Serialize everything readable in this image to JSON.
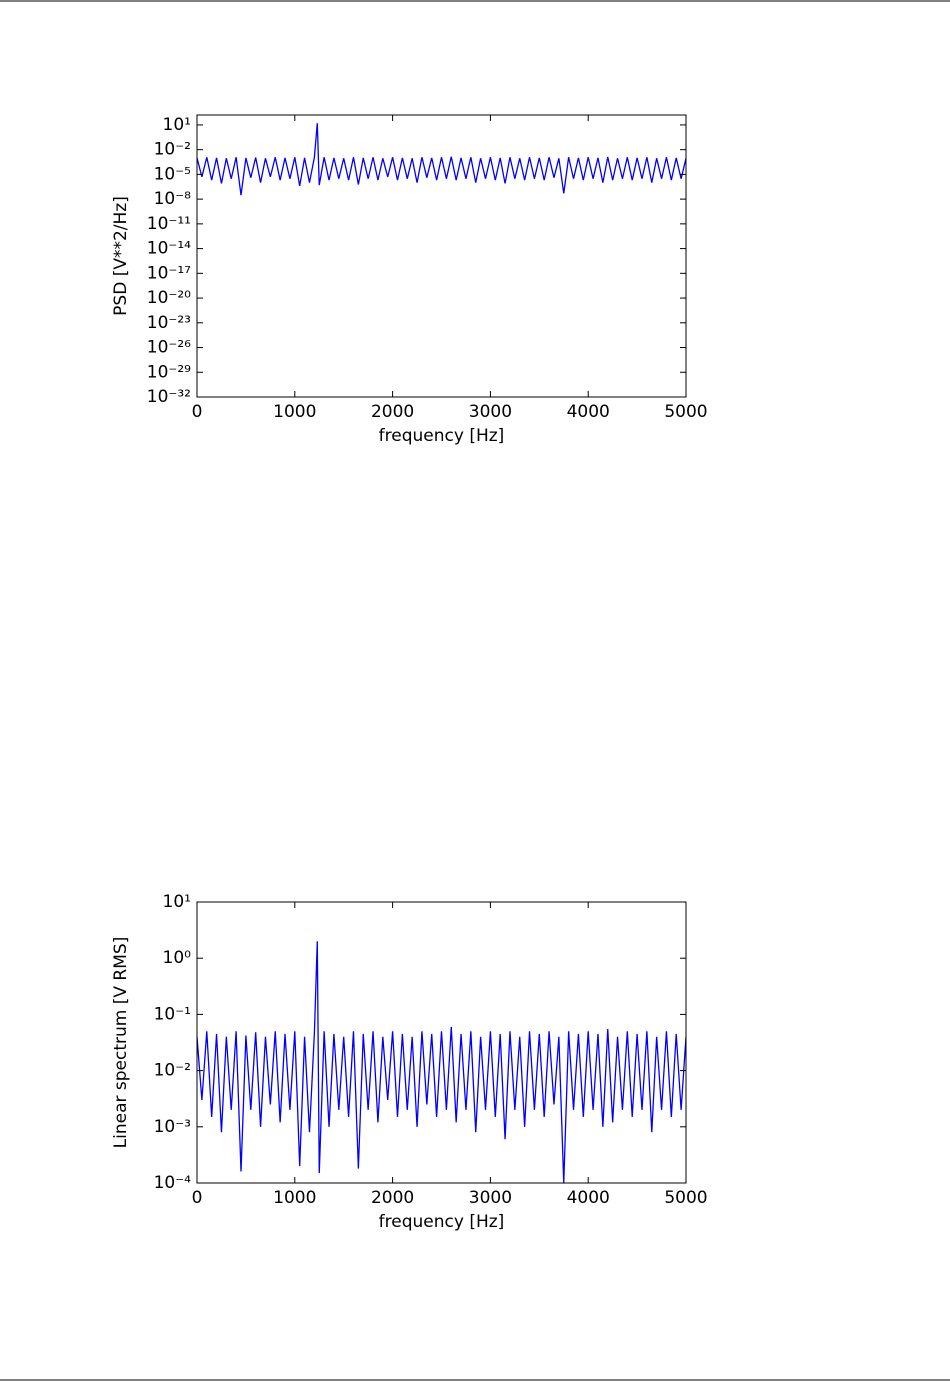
{
  "chart_data": [
    {
      "type": "line",
      "xlabel": "frequency [Hz]",
      "ylabel": "PSD [V**2/Hz]",
      "yscale": "log",
      "xlim": [
        0,
        5000
      ],
      "xticks": [
        0,
        1000,
        2000,
        3000,
        4000,
        5000
      ],
      "ylim": [
        1e-32,
        160
      ],
      "yticks": [
        {
          "value": 10,
          "label": "10¹"
        },
        {
          "value": 0.01,
          "label": "10⁻²"
        },
        {
          "value": 1e-05,
          "label": "10⁻⁵"
        },
        {
          "value": 1e-08,
          "label": "10⁻⁸"
        },
        {
          "value": 1e-11,
          "label": "10⁻¹¹"
        },
        {
          "value": 1e-14,
          "label": "10⁻¹⁴"
        },
        {
          "value": 1e-17,
          "label": "10⁻¹⁷"
        },
        {
          "value": 1e-20,
          "label": "10⁻²⁰"
        },
        {
          "value": 1e-23,
          "label": "10⁻²³"
        },
        {
          "value": 1e-26,
          "label": "10⁻²⁶"
        },
        {
          "value": 1e-29,
          "label": "10⁻²⁹"
        },
        {
          "value": 1e-32,
          "label": "10⁻³²"
        }
      ],
      "color": "#0000ff",
      "x": [
        0,
        50,
        100,
        150,
        200,
        250,
        300,
        350,
        400,
        450,
        500,
        550,
        600,
        650,
        700,
        750,
        800,
        850,
        900,
        950,
        1000,
        1050,
        1100,
        1150,
        1200,
        1230,
        1250,
        1300,
        1350,
        1400,
        1450,
        1500,
        1550,
        1600,
        1650,
        1700,
        1750,
        1800,
        1850,
        1900,
        1950,
        2000,
        2050,
        2100,
        2150,
        2200,
        2250,
        2300,
        2350,
        2400,
        2450,
        2500,
        2550,
        2600,
        2650,
        2700,
        2750,
        2800,
        2850,
        2900,
        2950,
        3000,
        3050,
        3100,
        3150,
        3200,
        3250,
        3300,
        3350,
        3400,
        3450,
        3500,
        3550,
        3600,
        3650,
        3700,
        3750,
        3800,
        3850,
        3900,
        3950,
        4000,
        4050,
        4100,
        4150,
        4200,
        4250,
        4300,
        4350,
        4400,
        4450,
        4500,
        4550,
        4600,
        4650,
        4700,
        4750,
        4800,
        4850,
        4900,
        4950,
        5000
      ],
      "values": [
        0.001,
        5e-06,
        0.0012,
        2e-06,
        0.001,
        8e-07,
        0.0009,
        3e-06,
        0.0012,
        3e-08,
        0.001,
        4e-06,
        0.0011,
        1e-06,
        0.0009,
        5e-06,
        0.0012,
        2e-06,
        0.001,
        3e-06,
        0.0012,
        4e-07,
        0.001,
        1e-06,
        0.0011,
        16,
        5e-07,
        0.0012,
        2e-06,
        0.001,
        3e-06,
        0.0009,
        2e-06,
        0.0012,
        6e-07,
        0.001,
        3e-06,
        0.0012,
        2e-06,
        0.0009,
        5e-06,
        0.0012,
        2e-06,
        0.001,
        3e-06,
        0.0009,
        1e-06,
        0.0012,
        4e-06,
        0.001,
        2e-06,
        0.0012,
        3e-06,
        0.0014,
        2e-06,
        0.001,
        3e-06,
        0.0012,
        1e-06,
        0.0009,
        3e-06,
        0.0012,
        2e-06,
        0.001,
        8e-07,
        0.0012,
        3e-06,
        0.0009,
        2e-06,
        0.0012,
        3e-06,
        0.001,
        2e-06,
        0.0012,
        4e-06,
        0.0009,
        5e-08,
        0.0012,
        3e-06,
        0.001,
        2e-06,
        0.0012,
        3e-06,
        0.001,
        1e-06,
        0.0013,
        2e-06,
        0.0009,
        3e-06,
        0.0012,
        2e-06,
        0.001,
        3e-06,
        0.0012,
        1e-06,
        0.0009,
        3e-06,
        0.0012,
        2e-06,
        0.001,
        3e-06,
        0.0009
      ]
    },
    {
      "type": "line",
      "xlabel": "frequency [Hz]",
      "ylabel": "Linear spectrum [V RMS]",
      "yscale": "log",
      "xlim": [
        0,
        5000
      ],
      "xticks": [
        0,
        1000,
        2000,
        3000,
        4000,
        5000
      ],
      "ylim": [
        0.0001,
        10
      ],
      "yticks": [
        {
          "value": 10,
          "label": "10¹"
        },
        {
          "value": 1,
          "label": "10⁰"
        },
        {
          "value": 0.1,
          "label": "10⁻¹"
        },
        {
          "value": 0.01,
          "label": "10⁻²"
        },
        {
          "value": 0.001,
          "label": "10⁻³"
        },
        {
          "value": 0.0001,
          "label": "10⁻⁴"
        }
      ],
      "color": "#0000ff",
      "x": [
        0,
        50,
        100,
        150,
        200,
        250,
        300,
        350,
        400,
        450,
        500,
        550,
        600,
        650,
        700,
        750,
        800,
        850,
        900,
        950,
        1000,
        1050,
        1100,
        1150,
        1200,
        1230,
        1250,
        1300,
        1350,
        1400,
        1450,
        1500,
        1550,
        1600,
        1650,
        1700,
        1750,
        1800,
        1850,
        1900,
        1950,
        2000,
        2050,
        2100,
        2150,
        2200,
        2250,
        2300,
        2350,
        2400,
        2450,
        2500,
        2550,
        2600,
        2650,
        2700,
        2750,
        2800,
        2850,
        2900,
        2950,
        3000,
        3050,
        3100,
        3150,
        3200,
        3250,
        3300,
        3350,
        3400,
        3450,
        3500,
        3550,
        3600,
        3650,
        3700,
        3750,
        3800,
        3850,
        3900,
        3950,
        4000,
        4050,
        4100,
        4150,
        4200,
        4250,
        4300,
        4350,
        4400,
        4450,
        4500,
        4550,
        4600,
        4650,
        4700,
        4750,
        4800,
        4850,
        4900,
        4950,
        5000
      ],
      "values": [
        0.04,
        0.003,
        0.05,
        0.0015,
        0.045,
        0.0008,
        0.04,
        0.002,
        0.05,
        0.00016,
        0.042,
        0.002,
        0.048,
        0.001,
        0.04,
        0.0025,
        0.05,
        0.0012,
        0.045,
        0.002,
        0.05,
        0.0002,
        0.04,
        0.0008,
        0.045,
        2,
        0.00015,
        0.05,
        0.001,
        0.045,
        0.002,
        0.04,
        0.0015,
        0.05,
        0.00018,
        0.045,
        0.002,
        0.05,
        0.0012,
        0.04,
        0.003,
        0.05,
        0.0015,
        0.045,
        0.002,
        0.04,
        0.001,
        0.05,
        0.0025,
        0.045,
        0.0015,
        0.05,
        0.002,
        0.06,
        0.0012,
        0.045,
        0.002,
        0.05,
        0.0008,
        0.04,
        0.002,
        0.05,
        0.0015,
        0.045,
        0.0006,
        0.05,
        0.002,
        0.04,
        0.001,
        0.05,
        0.002,
        0.045,
        0.0015,
        0.05,
        0.0025,
        0.04,
        0.0001,
        0.05,
        0.002,
        0.045,
        0.0015,
        0.05,
        0.002,
        0.045,
        0.001,
        0.055,
        0.0012,
        0.04,
        0.002,
        0.05,
        0.0015,
        0.045,
        0.002,
        0.05,
        0.0008,
        0.04,
        0.002,
        0.05,
        0.0015,
        0.045,
        0.002,
        0.04
      ]
    }
  ]
}
